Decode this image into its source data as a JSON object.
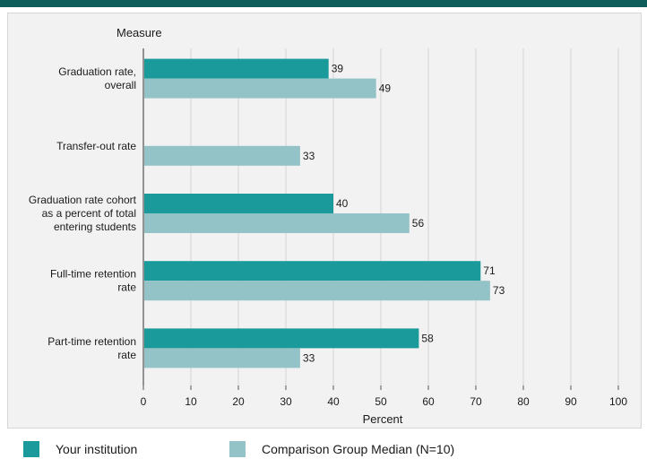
{
  "chart_data": {
    "type": "bar",
    "orientation": "horizontal",
    "title": "",
    "ylabel": "Measure",
    "xlabel": "Percent",
    "xlim": [
      0,
      100
    ],
    "xticks": [
      0,
      10,
      20,
      30,
      40,
      50,
      60,
      70,
      80,
      90,
      100
    ],
    "grid": true,
    "categories": [
      [
        "Graduation rate,",
        "overall"
      ],
      [
        "Transfer-out rate"
      ],
      [
        "Graduation rate cohort",
        "as a percent of total",
        "entering students"
      ],
      [
        "Full-time retention",
        "rate"
      ],
      [
        "Part-time retention",
        "rate"
      ]
    ],
    "series": [
      {
        "name": "Your institution",
        "color": "#1a9a9a",
        "values": [
          39,
          null,
          40,
          71,
          58
        ]
      },
      {
        "name": "Comparison Group Median (N=10)",
        "color": "#94c3c7",
        "values": [
          49,
          33,
          56,
          73,
          33
        ]
      }
    ],
    "legend_position": "bottom"
  }
}
